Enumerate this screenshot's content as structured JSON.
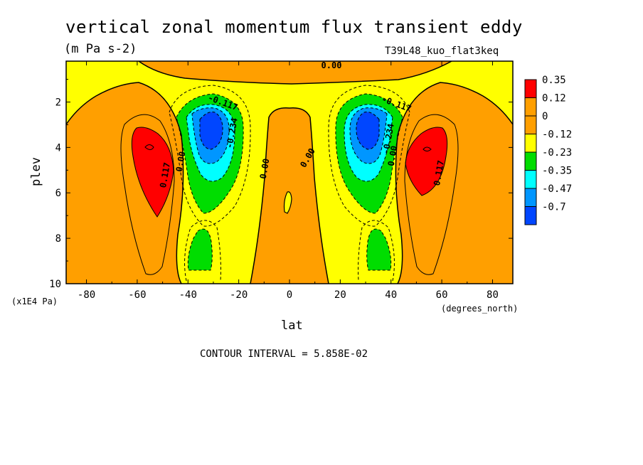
{
  "chart_data": {
    "type": "contour",
    "title": "vertical zonal momentum flux transient eddy",
    "units": "(m Pa s-2)",
    "run_label": "T39L48_kuo_flat3keq",
    "xlabel": "lat",
    "x_units": "(degrees_north)",
    "ylabel": "plev",
    "y_units": "(x1E4 Pa)",
    "xlim": [
      -88,
      88
    ],
    "ylim": [
      10,
      0.2
    ],
    "x_ticks": [
      -80,
      -60,
      -40,
      -20,
      0,
      20,
      40,
      60,
      80
    ],
    "x_tick_labels": [
      "-80",
      "-60",
      "-40",
      "-20",
      "0",
      "20",
      "40",
      "60",
      "80"
    ],
    "y_ticks": [
      2,
      4,
      6,
      8,
      10
    ],
    "y_tick_labels": [
      "2",
      "4",
      "6",
      "8",
      "10"
    ],
    "contour_interval_text": "CONTOUR INTERVAL = 5.858E-02",
    "contour_labels": [
      "0.117",
      "0.00",
      "0.00",
      "0.00",
      "0.00",
      "0.00",
      "0.00",
      "-0.117",
      "-0.234",
      "0.117",
      "-0.117",
      "-0.234"
    ],
    "legend": [
      {
        "label": "0.35",
        "color": "#ff0000"
      },
      {
        "label": "0.12",
        "color": "#ff9f00"
      },
      {
        "label": "0",
        "color": "#ff9f00"
      },
      {
        "label": "-0.12",
        "color": "#ffff00"
      },
      {
        "label": "-0.23",
        "color": "#00dd00"
      },
      {
        "label": "-0.35",
        "color": "#00ffff"
      },
      {
        "label": "-0.47",
        "color": "#0096ff"
      },
      {
        "label": "-0.7",
        "color": "#0046ff"
      }
    ],
    "fill_colors": {
      "pos1": "#ff9f00",
      "pos2": "#ff0000",
      "neg1": "#ffff00",
      "neg2": "#00dd00",
      "neg3": "#00ffff",
      "neg4": "#0096ff",
      "neg5": "#0046ff"
    },
    "features": [
      {
        "name": "max-left",
        "lat": -55,
        "plev": 4.5,
        "value": 0.35
      },
      {
        "name": "max-right",
        "lat": 55,
        "plev": 4.5,
        "value": 0.35
      },
      {
        "name": "min-left",
        "lat": -31,
        "plev": 3.0,
        "value": -0.7
      },
      {
        "name": "min-right",
        "lat": 31,
        "plev": 3.0,
        "value": -0.7
      },
      {
        "name": "min-low-left",
        "lat": -33,
        "plev": 8.8,
        "value": -0.23
      },
      {
        "name": "min-low-right",
        "lat": 33,
        "plev": 8.8,
        "value": -0.23
      }
    ]
  }
}
